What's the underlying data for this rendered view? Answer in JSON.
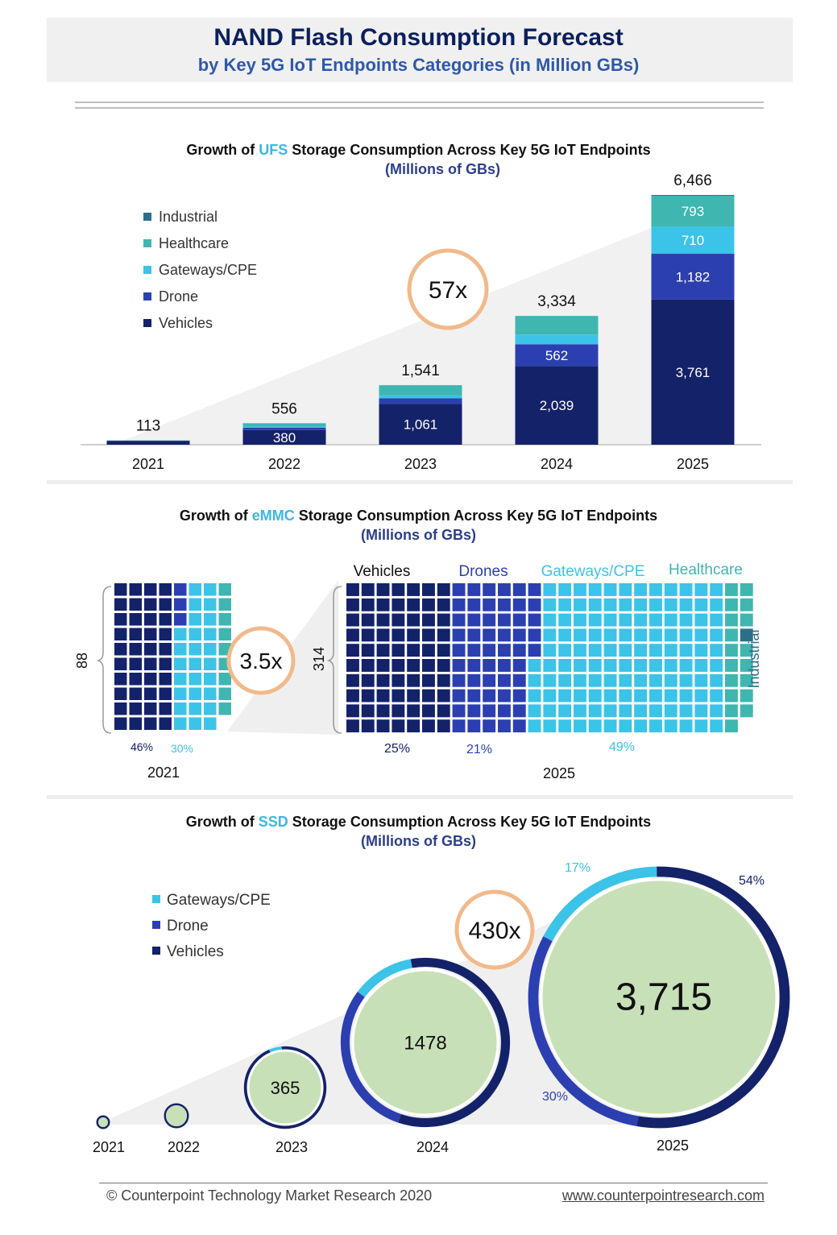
{
  "header": {
    "title": "NAND Flash Consumption Forecast",
    "subtitle": "by Key 5G IoT Endpoints Categories (in Million GBs)"
  },
  "colors": {
    "vehicles": "#14226a",
    "drone": "#2c3fb1",
    "gateways": "#3cc3e8",
    "healthcare": "#3fb6b0",
    "industrial": "#2c6f8a",
    "bubble_fill": "#c8e0b8",
    "multiplier_ring": "#f2b98a"
  },
  "ufs": {
    "title_pre": "Growth of ",
    "title_hl": "UFS",
    "title_post": " Storage Consumption Across Key 5G IoT Endpoints",
    "unit": "(Millions of GBs)",
    "multiplier": "57x"
  },
  "emmc": {
    "title_pre": "Growth of ",
    "title_hl": "eMMC",
    "title_post": " Storage Consumption Across Key 5G IoT Endpoints",
    "unit": "(Millions of GBs)",
    "multiplier": "3.5x",
    "left_value": "88",
    "right_value": "314",
    "year_left": "2021",
    "year_right": "2025",
    "cat_vehicles": "Vehicles",
    "cat_drones": "Drones",
    "cat_gateways": "Gateways/CPE",
    "cat_healthcare": "Healthcare",
    "cat_industrial": "Industrial",
    "pct_2021_vehicles": "46%",
    "pct_2021_gateways": "30%",
    "pct_2025_vehicles": "25%",
    "pct_2025_drones": "21%",
    "pct_2025_gateways": "49%"
  },
  "ssd": {
    "title_pre": "Growth of ",
    "title_hl": "SSD",
    "title_post": " Storage Consumption Across Key 5G IoT Endpoints",
    "unit": "(Millions of GBs)",
    "multiplier": "430x",
    "pct_gateways": "17%",
    "pct_vehicles": "54%",
    "pct_drone": "30%"
  },
  "footer": {
    "copyright": "© Counterpoint Technology Market Research 2020",
    "url": "www.counterpointresearch.com"
  },
  "chart_data": [
    {
      "type": "bar",
      "stacked": true,
      "categories": [
        "2021",
        "2022",
        "2023",
        "2024",
        "2025"
      ],
      "totals": [
        "113",
        "556",
        "1,541",
        "3,334",
        "6,466"
      ],
      "total_values": [
        113,
        556,
        1541,
        3334,
        6466
      ],
      "series": [
        {
          "name": "Vehicles",
          "values": [
            100,
            380,
            1061,
            2039,
            3761
          ],
          "labels": [
            "",
            "380",
            "1,061",
            "2,039",
            "3,761"
          ]
        },
        {
          "name": "Drone",
          "values": [
            4,
            60,
            140,
            562,
            1182
          ],
          "labels": [
            "",
            "",
            "",
            "562",
            "1,182"
          ]
        },
        {
          "name": "Gateways/CPE",
          "values": [
            3,
            30,
            80,
            250,
            710
          ],
          "labels": [
            "",
            "",
            "",
            "",
            "710"
          ]
        },
        {
          "name": "Healthcare",
          "values": [
            6,
            86,
            260,
            483,
            793
          ],
          "labels": [
            "",
            "",
            "",
            "",
            "793"
          ]
        },
        {
          "name": "Industrial",
          "values": [
            0,
            0,
            0,
            0,
            20
          ],
          "labels": [
            "",
            "",
            "",
            "",
            ""
          ]
        }
      ],
      "legend": [
        "Industrial",
        "Healthcare",
        "Gateways/CPE",
        "Drone",
        "Vehicles"
      ],
      "legend_position": "top-left",
      "ylim": [
        0,
        6466
      ]
    },
    {
      "type": "waffle",
      "categories": [
        "2021",
        "2025"
      ],
      "totals": [
        88,
        314
      ],
      "series": [
        {
          "name": "Vehicles",
          "percent": [
            46,
            25
          ]
        },
        {
          "name": "Drones",
          "percent": [
            4,
            21
          ]
        },
        {
          "name": "Gateways/CPE",
          "percent": [
            30,
            49
          ]
        },
        {
          "name": "Healthcare",
          "percent": [
            20,
            4
          ]
        },
        {
          "name": "Industrial",
          "percent": [
            0,
            1
          ]
        }
      ]
    },
    {
      "type": "bubble",
      "categories": [
        "2021",
        "2022",
        "2023",
        "2024",
        "2025"
      ],
      "values": [
        null,
        null,
        365,
        1478,
        3715
      ],
      "value_labels": [
        "",
        "",
        "365",
        "1478",
        "3,715"
      ],
      "series_2025_share": [
        {
          "name": "Gateways/CPE",
          "percent": 17
        },
        {
          "name": "Drone",
          "percent": 30
        },
        {
          "name": "Vehicles",
          "percent": 54
        }
      ],
      "legend": [
        "Gateways/CPE",
        "Drone",
        "Vehicles"
      ],
      "legend_position": "top-left"
    }
  ]
}
